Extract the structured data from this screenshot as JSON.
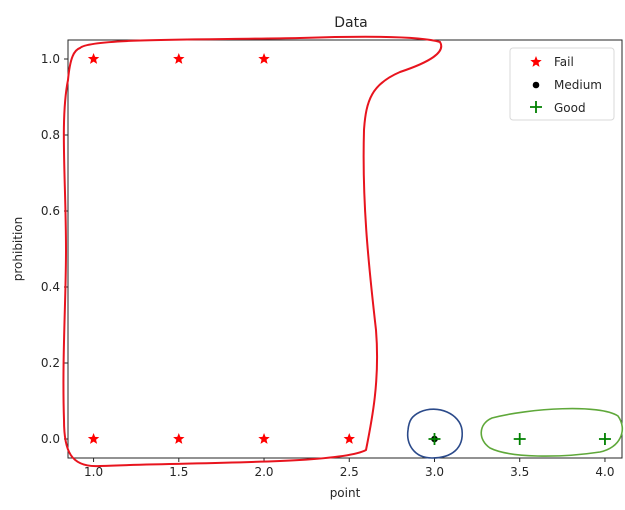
{
  "chart_data": {
    "type": "scatter",
    "title": "Data",
    "xlabel": "point",
    "ylabel": "prohibition",
    "xlim": [
      0.85,
      4.1
    ],
    "ylim": [
      -0.05,
      1.05
    ],
    "xticks": [
      1.0,
      1.5,
      2.0,
      2.5,
      3.0,
      3.5,
      4.0
    ],
    "xtick_labels": [
      "1.0",
      "1.5",
      "2.0",
      "2.5",
      "3.0",
      "3.5",
      "4.0"
    ],
    "yticks": [
      0.0,
      0.2,
      0.4,
      0.6,
      0.8,
      1.0
    ],
    "ytick_labels": [
      "0.0",
      "0.2",
      "0.4",
      "0.6",
      "0.8",
      "1.0"
    ],
    "grid": false,
    "legend_position": "top-right",
    "series": [
      {
        "name": "Fail",
        "marker": "star",
        "color": "#ff0000",
        "points": [
          {
            "x": 1.0,
            "y": 1.0
          },
          {
            "x": 1.5,
            "y": 1.0
          },
          {
            "x": 2.0,
            "y": 1.0
          },
          {
            "x": 1.0,
            "y": 0.0
          },
          {
            "x": 1.5,
            "y": 0.0
          },
          {
            "x": 2.0,
            "y": 0.0
          },
          {
            "x": 2.5,
            "y": 0.0
          }
        ]
      },
      {
        "name": "Medium",
        "marker": "dot",
        "color": "#000000",
        "points": [
          {
            "x": 3.0,
            "y": 0.0
          }
        ]
      },
      {
        "name": "Good",
        "marker": "plus",
        "color": "#008000",
        "points": [
          {
            "x": 3.0,
            "y": 0.0
          },
          {
            "x": 3.5,
            "y": 0.0
          },
          {
            "x": 4.0,
            "y": 0.0
          }
        ]
      }
    ],
    "annotations": [
      {
        "kind": "hand-drawn-outline",
        "color": "#e8141e",
        "encloses": "Fail"
      },
      {
        "kind": "hand-drawn-outline",
        "color": "#2b4a8a",
        "encloses": "Medium"
      },
      {
        "kind": "hand-drawn-outline",
        "color": "#5fa83a",
        "encloses": "Good"
      }
    ]
  }
}
